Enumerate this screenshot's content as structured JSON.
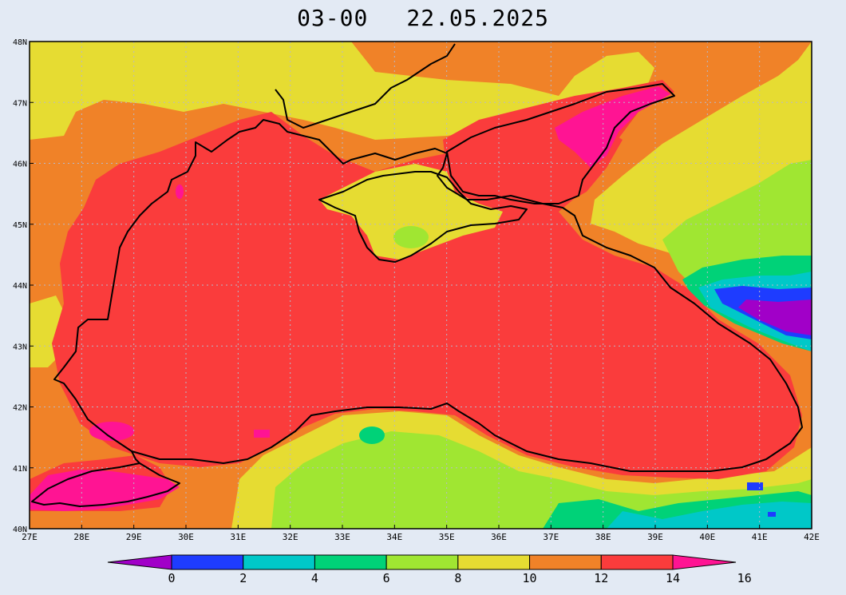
{
  "title": {
    "time": "03-00",
    "date": "22.05.2025"
  },
  "map": {
    "lat_labels": [
      "48N",
      "47N",
      "46N",
      "45N",
      "44N",
      "43N",
      "42N",
      "41N",
      "40N"
    ],
    "lon_labels": [
      "27E",
      "28E",
      "29E",
      "30E",
      "31E",
      "32E",
      "33E",
      "34E",
      "35E",
      "36E",
      "37E",
      "38E",
      "39E",
      "40E",
      "41E",
      "42E"
    ]
  },
  "colorbar": {
    "bins": [
      {
        "color": "#a100c8"
      },
      {
        "color": "#1e3cff"
      },
      {
        "color": "#00c8c8"
      },
      {
        "color": "#00d278"
      },
      {
        "color": "#a0e632"
      },
      {
        "color": "#e6dc32"
      },
      {
        "color": "#f08228"
      },
      {
        "color": "#fa3c3c"
      },
      {
        "color": "#ff1493"
      }
    ],
    "labels": [
      "0",
      "2",
      "4",
      "6",
      "8",
      "10",
      "12",
      "14",
      "16"
    ]
  }
}
